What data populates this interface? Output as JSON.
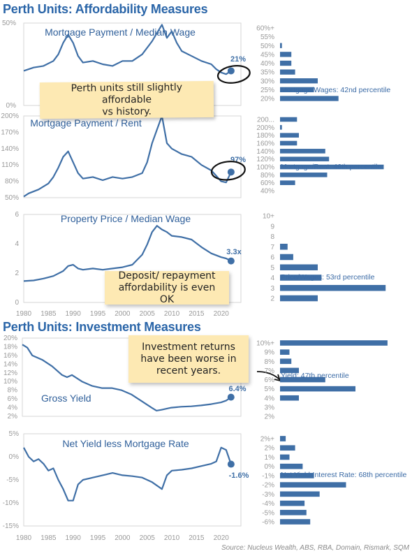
{
  "titles": {
    "affordability": "Perth Units: Affordability Measures",
    "investment": "Perth Units: Investment Measures"
  },
  "notes": {
    "affordable": "Perth units still slightly affordable\nvs history.",
    "deposit": "Deposit/ repayment\naffordability is even OK",
    "returns": "Investment returns\nhave been worse in\nrecent years."
  },
  "source": "Source: Nucleus Wealth, ABS, RBA, Domain, Rismark, SQM",
  "colors": {
    "line": "#3f6fa6",
    "bar": "#3f6fa6",
    "title": "#2a65a8",
    "note": "#fde9b3"
  },
  "chart_data": [
    {
      "type": "line",
      "title": "Mortgage Payment / Median Wage",
      "yticks": [
        "50%",
        "0%"
      ],
      "ylim": [
        0,
        50
      ],
      "x": [
        1980,
        1982,
        1984,
        1986,
        1987,
        1988,
        1989,
        1990,
        1991,
        1992,
        1994,
        1996,
        1998,
        2000,
        2002,
        2004,
        2006,
        2007,
        2008,
        2009,
        2010,
        2011,
        2012,
        2014,
        2016,
        2018,
        2019,
        2020,
        2021,
        2022
      ],
      "y": [
        21,
        23,
        24,
        27,
        31,
        38,
        43,
        38,
        30,
        26,
        27,
        25,
        24,
        27,
        27,
        31,
        39,
        44,
        49,
        41,
        45,
        38,
        33,
        30,
        27,
        25,
        22,
        20,
        19,
        21
      ],
      "end_label": "21%"
    },
    {
      "type": "line",
      "title": "Mortgage Payment / Rent",
      "yticks": [
        "200%",
        "170%",
        "140%",
        "110%",
        "80%",
        "50%"
      ],
      "ylim": [
        50,
        200
      ],
      "x": [
        1980,
        1981,
        1983,
        1985,
        1986,
        1987,
        1988,
        1989,
        1990,
        1991,
        1992,
        1994,
        1996,
        1998,
        2000,
        2002,
        2004,
        2005,
        2006,
        2007,
        2008,
        2009,
        2010,
        2012,
        2014,
        2016,
        2018,
        2019,
        2020,
        2021,
        2022
      ],
      "y": [
        52,
        58,
        65,
        76,
        88,
        105,
        125,
        135,
        115,
        95,
        85,
        88,
        82,
        88,
        85,
        88,
        95,
        115,
        150,
        175,
        200,
        150,
        140,
        130,
        125,
        110,
        100,
        90,
        80,
        78,
        97
      ],
      "end_label": "97%"
    },
    {
      "type": "line",
      "title": "Property Price / Median Wage",
      "yticks": [
        "6",
        "4",
        "2",
        "0"
      ],
      "xticks": [
        "1980",
        "1985",
        "1990",
        "1995",
        "2000",
        "2005",
        "2010",
        "2015",
        "2020"
      ],
      "ylim": [
        0,
        7
      ],
      "x": [
        1980,
        1982,
        1984,
        1986,
        1988,
        1989,
        1990,
        1991,
        1992,
        1994,
        1996,
        1998,
        2000,
        2002,
        2004,
        2005,
        2006,
        2007,
        2008,
        2009,
        2010,
        2012,
        2014,
        2016,
        2018,
        2020,
        2021,
        2022
      ],
      "y": [
        1.7,
        1.75,
        1.9,
        2.1,
        2.5,
        2.9,
        3.0,
        2.7,
        2.6,
        2.7,
        2.6,
        2.7,
        2.8,
        3.0,
        3.8,
        4.6,
        5.6,
        6.1,
        5.8,
        5.6,
        5.3,
        5.2,
        5.0,
        4.4,
        3.9,
        3.6,
        3.5,
        3.3
      ],
      "end_label": "3.3x"
    },
    {
      "type": "line",
      "title": "Gross Yield",
      "yticks": [
        "20%",
        "18%",
        "16%",
        "14%",
        "12%",
        "10%",
        "8%",
        "6%",
        "4%",
        "2%"
      ],
      "ylim": [
        2,
        20
      ],
      "x": [
        1980,
        1981,
        1982,
        1984,
        1986,
        1988,
        1989,
        1990,
        1992,
        1994,
        1996,
        1998,
        2000,
        2002,
        2004,
        2006,
        2007,
        2008,
        2010,
        2012,
        2014,
        2016,
        2018,
        2020,
        2021,
        2022
      ],
      "y": [
        18.5,
        17.8,
        16,
        15,
        13.5,
        11.5,
        11,
        11.5,
        10,
        9,
        8.5,
        8.5,
        8,
        7,
        5.5,
        4,
        3.3,
        3.5,
        4,
        4.2,
        4.3,
        4.5,
        4.8,
        5.2,
        5.6,
        6.4
      ],
      "end_label": "6.4%"
    },
    {
      "type": "line",
      "title": "Net Yield less Mortgage Rate",
      "yticks": [
        "5%",
        "0%",
        "-5%",
        "-10%",
        "-15%"
      ],
      "xticks": [
        "1980",
        "1985",
        "1990",
        "1995",
        "2000",
        "2005",
        "2010",
        "2015",
        "2020"
      ],
      "ylim": [
        -15,
        5
      ],
      "x": [
        1980,
        1981,
        1982,
        1983,
        1984,
        1985,
        1986,
        1987,
        1988,
        1989,
        1990,
        1991,
        1992,
        1994,
        1996,
        1998,
        2000,
        2002,
        2004,
        2006,
        2008,
        2009,
        2010,
        2012,
        2014,
        2016,
        2018,
        2019,
        2020,
        2021,
        2022
      ],
      "y": [
        2,
        0,
        -1,
        -0.5,
        -1.5,
        -3,
        -2.5,
        -5,
        -7,
        -9.5,
        -9.5,
        -6,
        -5,
        -4.5,
        -4,
        -3.5,
        -4,
        -4.2,
        -4.5,
        -5.5,
        -7,
        -4,
        -3,
        -2.8,
        -2.5,
        -2,
        -1.5,
        -1,
        2,
        1.5,
        -1.6
      ],
      "end_label": "-1.6%"
    },
    {
      "type": "bar",
      "orientation": "horizontal",
      "categories": [
        "60%+",
        "55%",
        "50%",
        "45%",
        "40%",
        "35%",
        "30%",
        "25%",
        "20%"
      ],
      "values": [
        0,
        0,
        1,
        6,
        6,
        8,
        20,
        18,
        31
      ],
      "annotation": "Mortgage/Wages: 42nd percentile",
      "highlight_category": "25%"
    },
    {
      "type": "bar",
      "orientation": "horizontal",
      "categories": [
        "200...",
        "200%",
        "180%",
        "160%",
        "140%",
        "120%",
        "100%",
        "80%",
        "60%",
        "40%"
      ],
      "values": [
        9,
        1,
        10,
        9,
        24,
        26,
        55,
        25,
        8,
        0
      ],
      "annotation": "Mortgage/Rent: 46th percentile",
      "highlight_category": "100%"
    },
    {
      "type": "bar",
      "orientation": "horizontal",
      "categories": [
        "10+",
        "9",
        "8",
        "7",
        "6",
        "5",
        "4",
        "3",
        "2"
      ],
      "values": [
        0,
        0,
        0,
        4,
        7,
        20,
        22,
        56,
        20
      ],
      "annotation": "Price/Wages: 53rd percentile",
      "highlight_category": "4"
    },
    {
      "type": "bar",
      "orientation": "horizontal",
      "categories": [
        "10%+",
        "9%",
        "8%",
        "7%",
        "6%",
        "5%",
        "4%",
        "3%",
        "2%"
      ],
      "values": [
        57,
        5,
        6,
        10,
        24,
        40,
        10,
        0,
        0
      ],
      "annotation": "Yield: 47th percentile",
      "highlight_category": "6%"
    },
    {
      "type": "bar",
      "orientation": "horizontal",
      "categories": [
        "2%+",
        "2%",
        "1%",
        "0%",
        "-1%",
        "-2%",
        "-3%",
        "-4%",
        "-5%",
        "-6%"
      ],
      "values": [
        3,
        8,
        5,
        12,
        18,
        35,
        21,
        13,
        14,
        16
      ],
      "annotation": "Net Yield-Interest Rate: 68th percentile",
      "highlight_category": "-1%"
    }
  ]
}
